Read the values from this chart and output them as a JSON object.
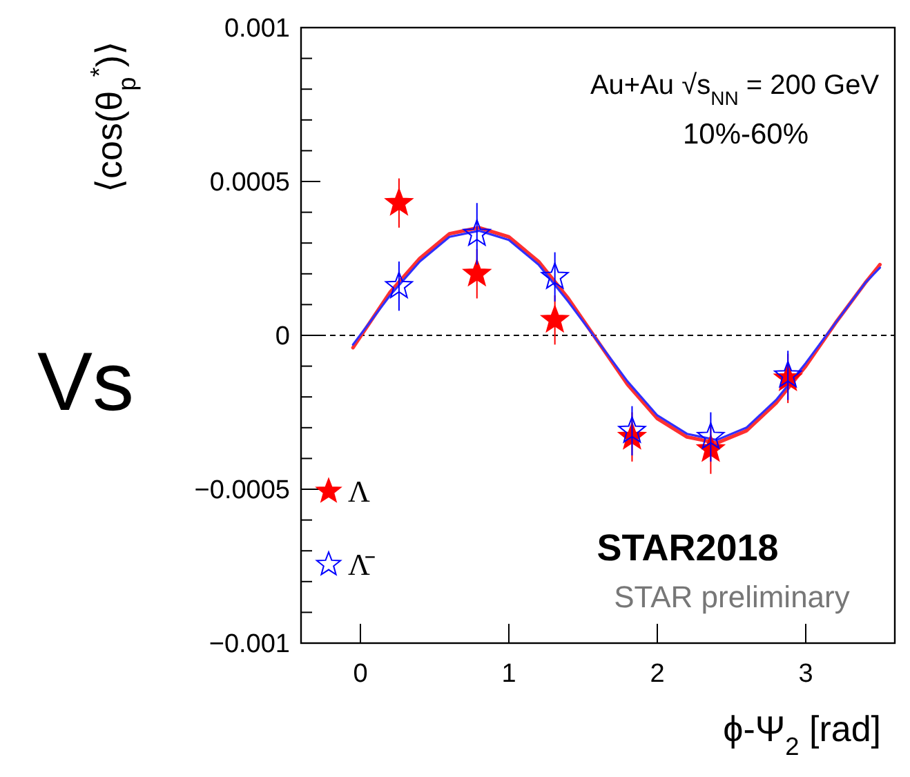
{
  "chart_data": {
    "type": "scatter",
    "xlabel": "ϕ-Ψ$_{2}$ [rad]",
    "ylabel": "⟨cos(θ$_{p}$$^{*}$)⟩",
    "x": [
      0.26,
      0.785,
      1.31,
      1.83,
      2.36,
      2.88
    ],
    "series": [
      {
        "type": "line",
        "marker": "none",
        "color": "#ff3030",
        "x": [
          -0.05,
          0.2,
          0.4,
          0.6,
          0.8,
          1.0,
          1.2,
          1.4,
          1.6,
          1.8,
          2.0,
          2.2,
          2.4,
          2.6,
          2.8,
          3.0,
          3.2,
          3.4,
          3.5
        ],
        "values": [
          -4e-05,
          0.00014,
          0.00025,
          0.00033,
          0.00035,
          0.00032,
          0.00024,
          0.00012,
          -2e-05,
          -0.00016,
          -0.00027,
          -0.00033,
          -0.00035,
          -0.00031,
          -0.00022,
          -0.0001,
          4e-05,
          0.00017,
          0.00023
        ]
      },
      {
        "type": "line",
        "marker": "none",
        "color": "#3030ff",
        "x": [
          -0.05,
          0.2,
          0.4,
          0.6,
          0.8,
          1.0,
          1.2,
          1.4,
          1.6,
          1.8,
          2.0,
          2.2,
          2.4,
          2.6,
          2.8,
          3.0,
          3.2,
          3.4,
          3.5
        ],
        "values": [
          -3e-05,
          0.00013,
          0.00024,
          0.00032,
          0.00034,
          0.00031,
          0.00023,
          0.00011,
          -2e-05,
          -0.00015,
          -0.00026,
          -0.00032,
          -0.00034,
          -0.0003,
          -0.00021,
          -9e-05,
          4e-05,
          0.00017,
          0.00022
        ]
      },
      {
        "name": "Λ",
        "marker": "star",
        "color": "#ff0000",
        "values": [
          0.00043,
          0.0002,
          5e-05,
          -0.00033,
          -0.00037,
          -0.00014
        ],
        "errors": [
          8e-05,
          8e-05,
          8e-05,
          8e-05,
          8e-05,
          8e-05
        ]
      },
      {
        "name": "Λ̄",
        "marker": "star",
        "color": "#0000ff",
        "values": [
          0.00016,
          0.00033,
          0.00019,
          -0.00031,
          -0.00033,
          -0.00013
        ],
        "errors": [
          8e-05,
          0.0001,
          8e-05,
          8e-05,
          8e-05,
          8e-05
        ]
      }
    ],
    "xlim": [
      -0.4,
      3.6
    ],
    "xticks": [
      0,
      1,
      2,
      3
    ],
    "ylim": [
      -0.001,
      0.001
    ],
    "yticks": [
      {
        "value": -0.001,
        "label": "−0.001"
      },
      {
        "value": -0.0009,
        "label": null
      },
      {
        "value": -0.0008,
        "label": null
      },
      {
        "value": -0.0007,
        "label": null
      },
      {
        "value": -0.0006,
        "label": null
      },
      {
        "value": -0.0005,
        "label": "−0.0005"
      },
      {
        "value": -0.0004,
        "label": null
      },
      {
        "value": -0.0003,
        "label": null
      },
      {
        "value": -0.0002,
        "label": null
      },
      {
        "value": -0.0001,
        "label": null
      },
      0,
      {
        "value": 0.0001,
        "label": null
      },
      {
        "value": 0.0002,
        "label": null
      },
      {
        "value": 0.0003,
        "label": null
      },
      {
        "value": 0.0004,
        "label": null
      },
      {
        "value": 0.0005,
        "label": "0.0005"
      },
      {
        "value": 0.0006,
        "label": null
      },
      {
        "value": 0.0007,
        "label": null
      },
      {
        "value": 0.0008,
        "label": null
      },
      {
        "value": 0.0009,
        "label": null
      },
      {
        "value": 0.001,
        "label": "0.001"
      }
    ],
    "ref_lines": [
      {
        "axis": "y",
        "value": 0,
        "line_style": "dashed",
        "color": "#000000"
      }
    ],
    "legend": "bottom left",
    "grid": false,
    "annotations": [
      "Au+Au √s$_{NN}$ = 200 GeV",
      "10%-60%",
      "STAR2018",
      "STAR preliminary",
      "Vs"
    ]
  }
}
